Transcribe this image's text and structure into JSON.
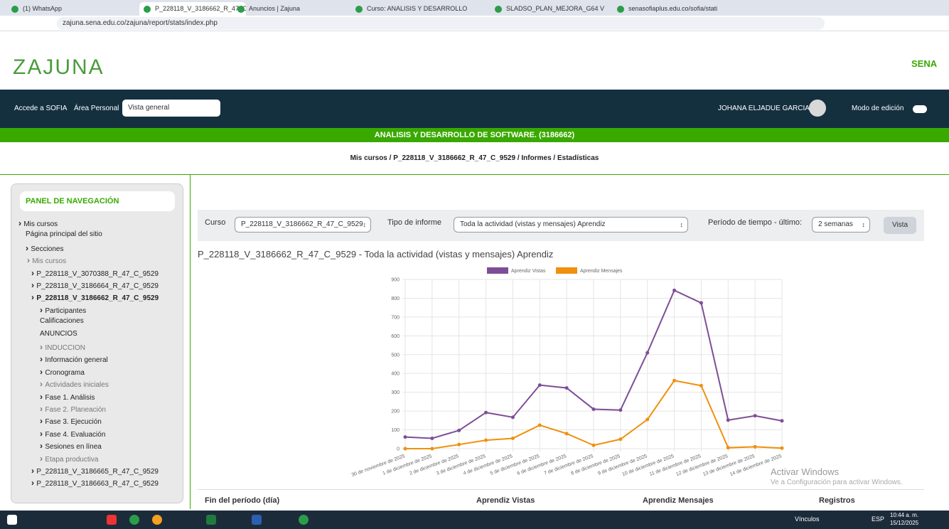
{
  "browser": {
    "tabs": [
      "(1) WhatsApp",
      "P_228118_V_3186662_R_47_C_9",
      "Anuncios | Zajuna",
      "Curso: ANALISIS Y DESARROLLO",
      "SLADSO_PLAN_MEJORA_G64 V",
      "senasofiaplus.edu.co/sofia/stati"
    ],
    "url": "zajuna.sena.edu.co/zajuna/report/stats/index.php"
  },
  "header": {
    "logo": "ZAJUNA",
    "brand": "SENA"
  },
  "navbar": {
    "links": [
      "Accede a SOFIA",
      "Área Personal"
    ],
    "select": "Vista general",
    "user": "JOHANA ELJADUE GARCIA",
    "edit_mode": "Modo de edición"
  },
  "banner": "ANALISIS Y DESARROLLO DE SOFTWARE. (3186662)",
  "breadcrumb": [
    "Mis cursos",
    "P_228118_V_3186662_R_47_C_9529",
    "Informes",
    "Estadísticas"
  ],
  "sidebar": {
    "title": "PANEL DE NAVEGACIÓN",
    "root": "Mis cursos",
    "home": "Página principal del sitio",
    "sections": "Secciones",
    "my_courses": "Mis cursos",
    "courses_before": [
      "P_228118_V_3070388_R_47_C_9529",
      "P_228118_V_3186664_R_47_C_9529"
    ],
    "current": {
      "label": "P_228118_V_3186662_R_47_C_9529",
      "items": [
        "Participantes",
        "Calificaciones",
        "ANUNCIOS",
        "INDUCCION",
        "Información general",
        "Cronograma",
        "Actividades iniciales",
        "Fase 1. Análisis",
        "Fase 2. Planeación",
        "Fase 3. Ejecución",
        "Fase 4. Evaluación",
        "Sesiones en línea",
        "Etapa productiva"
      ]
    },
    "courses_after": [
      "P_228118_V_3186665_R_47_C_9529",
      "P_228118_V_3186663_R_47_C_9529"
    ]
  },
  "filters": {
    "course_label": "Curso",
    "course": "P_228118_V_3186662_R_47_C_9529",
    "report_label": "Tipo de informe",
    "report": "Toda la actividad (vistas y mensajes) Aprendiz",
    "period_label": "Período de tiempo - último:",
    "period": "2 semanas",
    "button": "Vista"
  },
  "report_title": "P_228118_V_3186662_R_47_C_9529 - Toda la actividad (vistas y mensajes) Aprendiz",
  "chart_data": {
    "type": "line",
    "categories": [
      "30 de noviembre de 2025",
      "1 de diciembre de 2025",
      "2 de diciembre de 2025",
      "3 de diciembre de 2025",
      "4 de diciembre de 2025",
      "5 de diciembre de 2025",
      "6 de diciembre de 2025",
      "7 de diciembre de 2025",
      "8 de diciembre de 2025",
      "9 de diciembre de 2025",
      "10 de diciembre de 2025",
      "11 de diciembre de 2025",
      "12 de diciembre de 2025",
      "13 de diciembre de 2025",
      "14 de diciembre de 2025"
    ],
    "series": [
      {
        "name": "Aprendiz Vistas",
        "color": "#7d4e97",
        "values": [
          62,
          55,
          97,
          192,
          167,
          338,
          323,
          210,
          205,
          510,
          842,
          775,
          152,
          175,
          148
        ]
      },
      {
        "name": "Aprendiz Mensajes",
        "color": "#f0900d",
        "values": [
          0,
          0,
          22,
          45,
          55,
          125,
          80,
          18,
          50,
          155,
          362,
          335,
          5,
          10,
          3
        ]
      }
    ],
    "ylim": [
      0,
      900
    ],
    "yticks": [
      0,
      100,
      200,
      300,
      400,
      500,
      600,
      700,
      800,
      900
    ],
    "grid": true
  },
  "table": {
    "headers": [
      "Fin del período (día)",
      "Aprendiz Vistas",
      "Aprendiz Mensajes",
      "Registros"
    ]
  },
  "watermark": [
    "Activar Windows",
    "Ve a Configuración para activar Windows."
  ],
  "taskbar": {
    "links": "Vínculos",
    "lang": "ESP",
    "time": "10:44 a. m.",
    "date": "15/12/2025"
  }
}
